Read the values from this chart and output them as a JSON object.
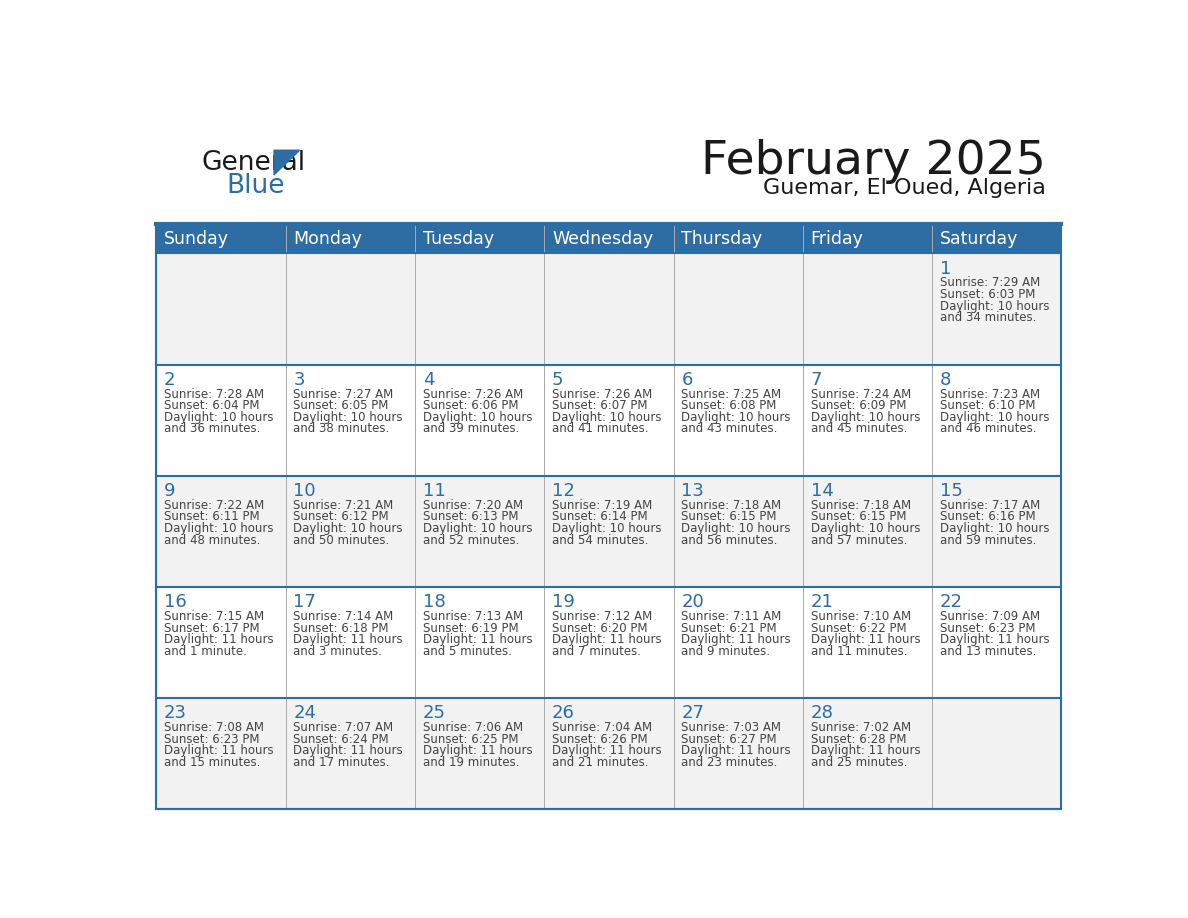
{
  "title": "February 2025",
  "subtitle": "Guemar, El Oued, Algeria",
  "header_bg_color": "#2E6DA4",
  "header_text_color": "#FFFFFF",
  "border_color": "#2E6DA4",
  "cell_line_color": "#AAAAAA",
  "text_color": "#444444",
  "day_num_color": "#2E6DA4",
  "days_of_week": [
    "Sunday",
    "Monday",
    "Tuesday",
    "Wednesday",
    "Thursday",
    "Friday",
    "Saturday"
  ],
  "weeks": [
    [
      {
        "day": "",
        "sunrise": "",
        "sunset": "",
        "daylight": ""
      },
      {
        "day": "",
        "sunrise": "",
        "sunset": "",
        "daylight": ""
      },
      {
        "day": "",
        "sunrise": "",
        "sunset": "",
        "daylight": ""
      },
      {
        "day": "",
        "sunrise": "",
        "sunset": "",
        "daylight": ""
      },
      {
        "day": "",
        "sunrise": "",
        "sunset": "",
        "daylight": ""
      },
      {
        "day": "",
        "sunrise": "",
        "sunset": "",
        "daylight": ""
      },
      {
        "day": "1",
        "sunrise": "7:29 AM",
        "sunset": "6:03 PM",
        "daylight": "10 hours\nand 34 minutes."
      }
    ],
    [
      {
        "day": "2",
        "sunrise": "7:28 AM",
        "sunset": "6:04 PM",
        "daylight": "10 hours\nand 36 minutes."
      },
      {
        "day": "3",
        "sunrise": "7:27 AM",
        "sunset": "6:05 PM",
        "daylight": "10 hours\nand 38 minutes."
      },
      {
        "day": "4",
        "sunrise": "7:26 AM",
        "sunset": "6:06 PM",
        "daylight": "10 hours\nand 39 minutes."
      },
      {
        "day": "5",
        "sunrise": "7:26 AM",
        "sunset": "6:07 PM",
        "daylight": "10 hours\nand 41 minutes."
      },
      {
        "day": "6",
        "sunrise": "7:25 AM",
        "sunset": "6:08 PM",
        "daylight": "10 hours\nand 43 minutes."
      },
      {
        "day": "7",
        "sunrise": "7:24 AM",
        "sunset": "6:09 PM",
        "daylight": "10 hours\nand 45 minutes."
      },
      {
        "day": "8",
        "sunrise": "7:23 AM",
        "sunset": "6:10 PM",
        "daylight": "10 hours\nand 46 minutes."
      }
    ],
    [
      {
        "day": "9",
        "sunrise": "7:22 AM",
        "sunset": "6:11 PM",
        "daylight": "10 hours\nand 48 minutes."
      },
      {
        "day": "10",
        "sunrise": "7:21 AM",
        "sunset": "6:12 PM",
        "daylight": "10 hours\nand 50 minutes."
      },
      {
        "day": "11",
        "sunrise": "7:20 AM",
        "sunset": "6:13 PM",
        "daylight": "10 hours\nand 52 minutes."
      },
      {
        "day": "12",
        "sunrise": "7:19 AM",
        "sunset": "6:14 PM",
        "daylight": "10 hours\nand 54 minutes."
      },
      {
        "day": "13",
        "sunrise": "7:18 AM",
        "sunset": "6:15 PM",
        "daylight": "10 hours\nand 56 minutes."
      },
      {
        "day": "14",
        "sunrise": "7:18 AM",
        "sunset": "6:15 PM",
        "daylight": "10 hours\nand 57 minutes."
      },
      {
        "day": "15",
        "sunrise": "7:17 AM",
        "sunset": "6:16 PM",
        "daylight": "10 hours\nand 59 minutes."
      }
    ],
    [
      {
        "day": "16",
        "sunrise": "7:15 AM",
        "sunset": "6:17 PM",
        "daylight": "11 hours\nand 1 minute."
      },
      {
        "day": "17",
        "sunrise": "7:14 AM",
        "sunset": "6:18 PM",
        "daylight": "11 hours\nand 3 minutes."
      },
      {
        "day": "18",
        "sunrise": "7:13 AM",
        "sunset": "6:19 PM",
        "daylight": "11 hours\nand 5 minutes."
      },
      {
        "day": "19",
        "sunrise": "7:12 AM",
        "sunset": "6:20 PM",
        "daylight": "11 hours\nand 7 minutes."
      },
      {
        "day": "20",
        "sunrise": "7:11 AM",
        "sunset": "6:21 PM",
        "daylight": "11 hours\nand 9 minutes."
      },
      {
        "day": "21",
        "sunrise": "7:10 AM",
        "sunset": "6:22 PM",
        "daylight": "11 hours\nand 11 minutes."
      },
      {
        "day": "22",
        "sunrise": "7:09 AM",
        "sunset": "6:23 PM",
        "daylight": "11 hours\nand 13 minutes."
      }
    ],
    [
      {
        "day": "23",
        "sunrise": "7:08 AM",
        "sunset": "6:23 PM",
        "daylight": "11 hours\nand 15 minutes."
      },
      {
        "day": "24",
        "sunrise": "7:07 AM",
        "sunset": "6:24 PM",
        "daylight": "11 hours\nand 17 minutes."
      },
      {
        "day": "25",
        "sunrise": "7:06 AM",
        "sunset": "6:25 PM",
        "daylight": "11 hours\nand 19 minutes."
      },
      {
        "day": "26",
        "sunrise": "7:04 AM",
        "sunset": "6:26 PM",
        "daylight": "11 hours\nand 21 minutes."
      },
      {
        "day": "27",
        "sunrise": "7:03 AM",
        "sunset": "6:27 PM",
        "daylight": "11 hours\nand 23 minutes."
      },
      {
        "day": "28",
        "sunrise": "7:02 AM",
        "sunset": "6:28 PM",
        "daylight": "11 hours\nand 25 minutes."
      },
      {
        "day": "",
        "sunrise": "",
        "sunset": "",
        "daylight": ""
      }
    ]
  ]
}
